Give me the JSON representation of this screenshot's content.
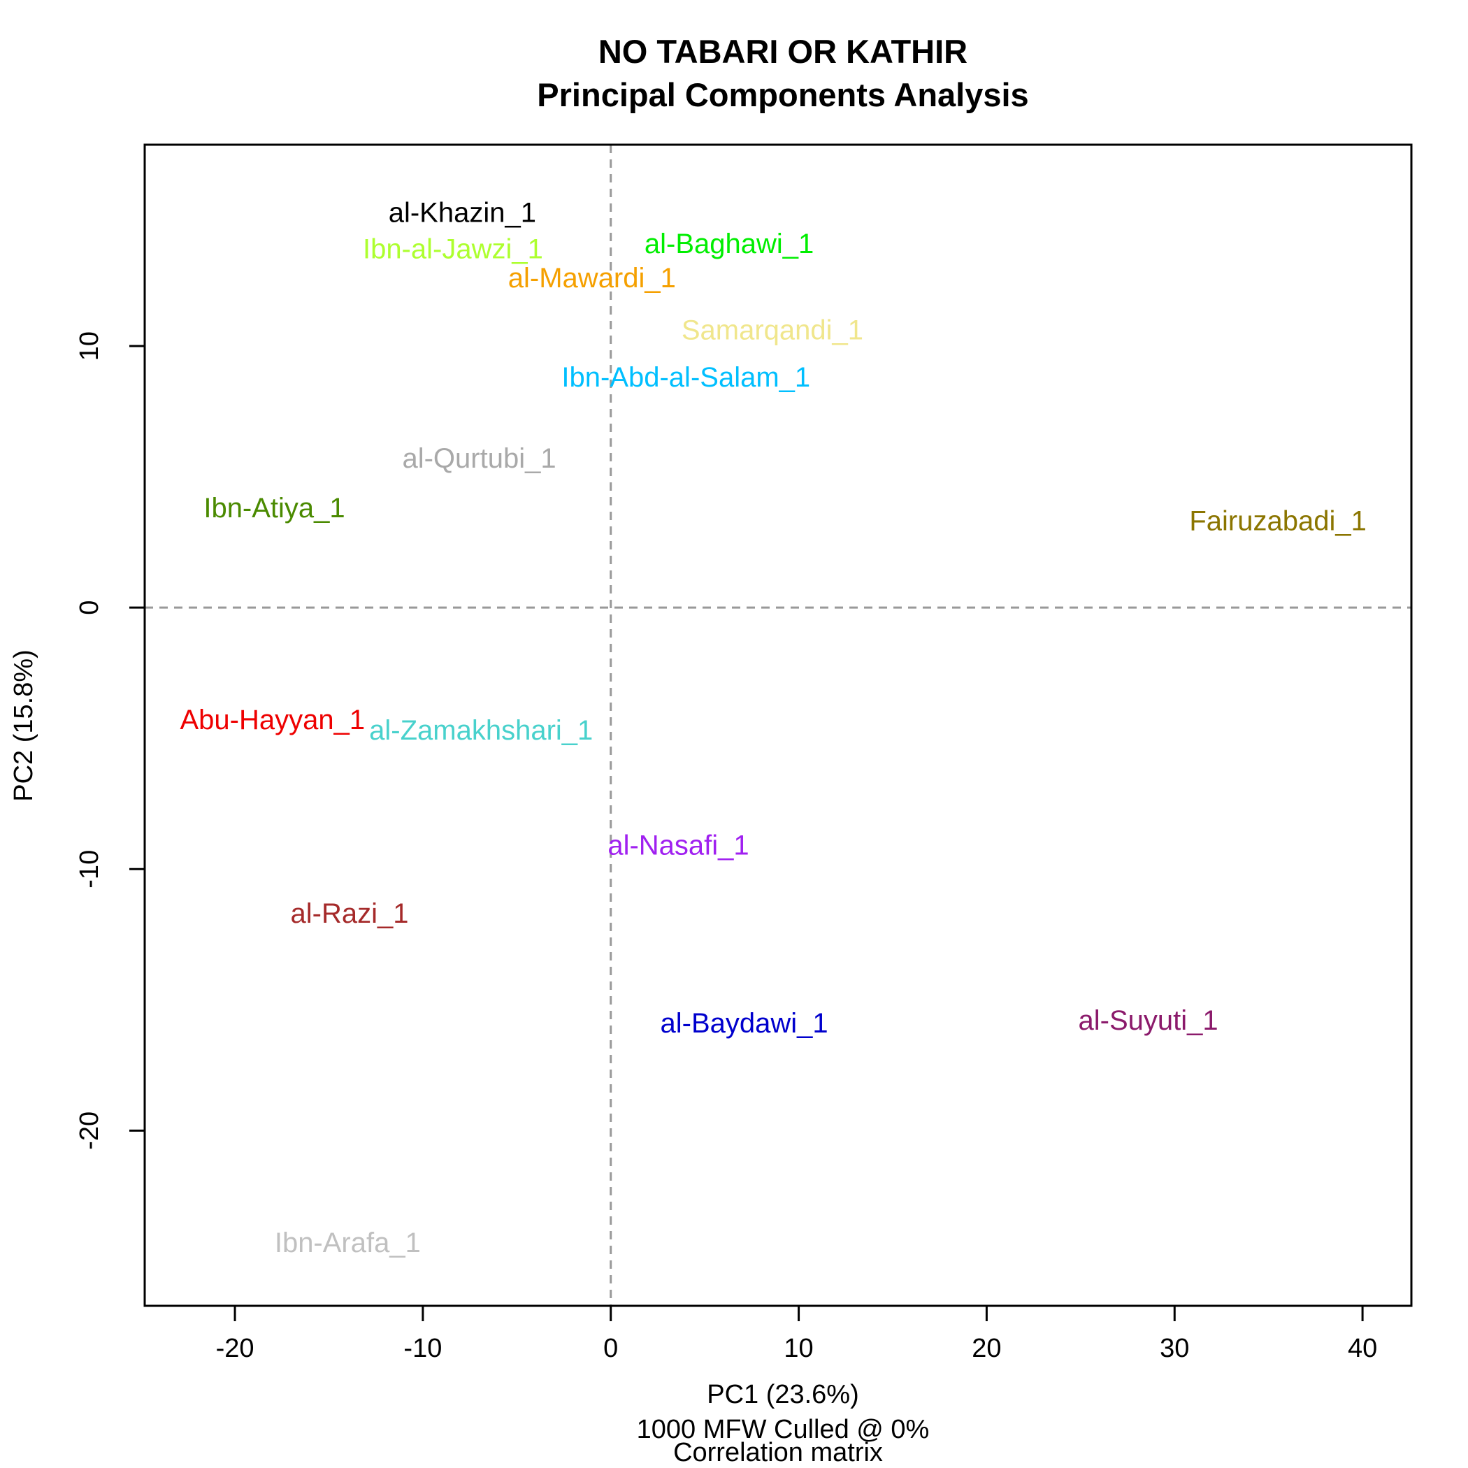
{
  "chart_data": {
    "type": "scatter",
    "title": "NO TABARI OR KATHIR",
    "subtitle": "Principal Components Analysis",
    "xlabel": "PC1 (23.6%)",
    "ylabel": "PC2 (15.8%)",
    "caption_lines": [
      "1000 MFW  Culled @ 0%",
      "Correlation matrix"
    ],
    "xlim": [
      -24.8,
      42.6
    ],
    "ylim": [
      -26.7,
      17.7
    ],
    "x_ticks": [
      -20,
      -10,
      0,
      10,
      20,
      30,
      40
    ],
    "y_ticks": [
      -20,
      -10,
      0,
      10
    ],
    "reference_lines": {
      "x": 0,
      "y": 0,
      "style": "dashed",
      "color": "#999999"
    },
    "grid": false,
    "points": [
      {
        "label": "al-Khazin_1",
        "x": -7.9,
        "y": 15.1,
        "color": "#000000"
      },
      {
        "label": "Ibn-al-Jawzi_1",
        "x": -8.4,
        "y": 13.7,
        "color": "#adff2f"
      },
      {
        "label": "al-Baghawi_1",
        "x": 6.3,
        "y": 13.9,
        "color": "#00ee00"
      },
      {
        "label": "al-Mawardi_1",
        "x": -1.0,
        "y": 12.6,
        "color": "#f5a000"
      },
      {
        "label": "Samarqandi_1",
        "x": 8.6,
        "y": 10.6,
        "color": "#f0e68c"
      },
      {
        "label": "Ibn-Abd-al-Salam_1",
        "x": 4.0,
        "y": 8.8,
        "color": "#00bfff"
      },
      {
        "label": "al-Qurtubi_1",
        "x": -7.0,
        "y": 5.7,
        "color": "#a9a9a9"
      },
      {
        "label": "Ibn-Atiya_1",
        "x": -17.9,
        "y": 3.8,
        "color": "#4a8a00"
      },
      {
        "label": "Fairuzabadi_1",
        "x": 35.5,
        "y": 3.3,
        "color": "#8b7500"
      },
      {
        "label": "Abu-Hayyan_1",
        "x": -18.0,
        "y": -4.3,
        "color": "#ee0000"
      },
      {
        "label": "al-Zamakhshari_1",
        "x": -6.9,
        "y": -4.7,
        "color": "#48d1cc"
      },
      {
        "label": "al-Nasafi_1",
        "x": 3.6,
        "y": -9.1,
        "color": "#a020f0"
      },
      {
        "label": "al-Razi_1",
        "x": -13.9,
        "y": -11.7,
        "color": "#a52a2a"
      },
      {
        "label": "al-Baydawi_1",
        "x": 7.1,
        "y": -15.9,
        "color": "#0000cd"
      },
      {
        "label": "al-Suyuti_1",
        "x": 28.6,
        "y": -15.8,
        "color": "#8b1a6b"
      },
      {
        "label": "Ibn-Arafa_1",
        "x": -14.0,
        "y": -24.3,
        "color": "#c0c0c0"
      }
    ]
  }
}
